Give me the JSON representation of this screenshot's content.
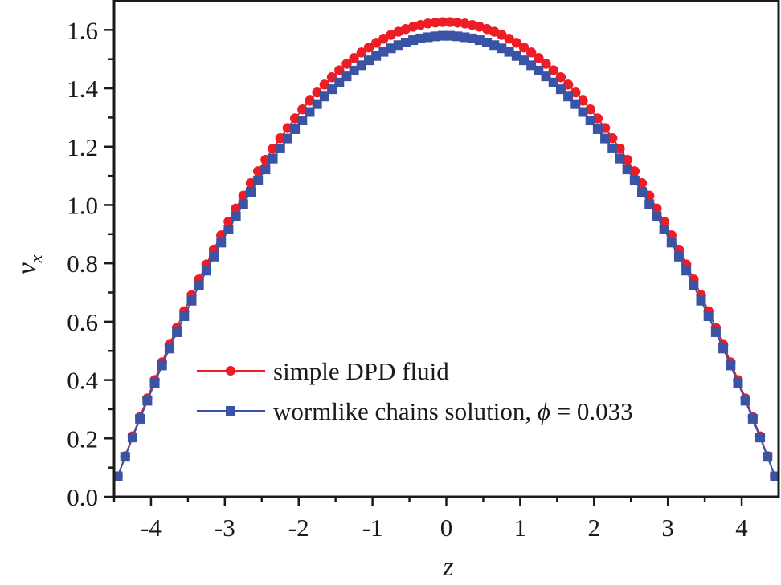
{
  "chart_data": {
    "type": "scatter",
    "title": "",
    "xlabel": "z",
    "ylabel": "v_x",
    "ylabel_main": "v",
    "ylabel_sub": "x",
    "xlim": [
      -4.5,
      4.5
    ],
    "ylim": [
      0.0,
      1.7
    ],
    "x_ticks": [
      -4,
      -3,
      -2,
      -1,
      0,
      1,
      2,
      3,
      4
    ],
    "x_tick_labels": [
      "-4",
      "-3",
      "-2",
      "-1",
      "0",
      "1",
      "2",
      "3",
      "4"
    ],
    "x_minor_ticks": [
      -3.5,
      -2.5,
      -1.5,
      -0.5,
      0.5,
      1.5,
      2.5,
      3.5
    ],
    "y_ticks": [
      0.0,
      0.2,
      0.4,
      0.6,
      0.8,
      1.0,
      1.2,
      1.4,
      1.6
    ],
    "y_tick_labels": [
      "0.0",
      "0.2",
      "0.4",
      "0.6",
      "0.8",
      "1.0",
      "1.2",
      "1.4",
      "1.6"
    ],
    "y_minor_ticks": [
      0.1,
      0.3,
      0.5,
      0.7,
      0.9,
      1.1,
      1.3,
      1.5
    ],
    "grid": false,
    "legend_position": "lower center (inside plot)",
    "x": [
      -4.45,
      -4.35,
      -4.25,
      -4.15,
      -4.05,
      -3.95,
      -3.85,
      -3.75,
      -3.65,
      -3.55,
      -3.45,
      -3.35,
      -3.25,
      -3.15,
      -3.05,
      -2.95,
      -2.85,
      -2.75,
      -2.65,
      -2.55,
      -2.45,
      -2.35,
      -2.25,
      -2.15,
      -2.05,
      -1.95,
      -1.85,
      -1.75,
      -1.65,
      -1.55,
      -1.45,
      -1.35,
      -1.25,
      -1.15,
      -1.05,
      -0.95,
      -0.85,
      -0.75,
      -0.65,
      -0.55,
      -0.45,
      -0.35,
      -0.25,
      -0.15,
      -0.05,
      0.05,
      0.15,
      0.25,
      0.35,
      0.45,
      0.55,
      0.65,
      0.75,
      0.85,
      0.95,
      1.05,
      1.15,
      1.25,
      1.35,
      1.45,
      1.55,
      1.65,
      1.75,
      1.85,
      1.95,
      2.05,
      2.15,
      2.25,
      2.35,
      2.45,
      2.55,
      2.65,
      2.75,
      2.85,
      2.95,
      3.05,
      3.15,
      3.25,
      3.35,
      3.45,
      3.55,
      3.65,
      3.75,
      3.85,
      3.95,
      4.05,
      4.15,
      4.25,
      4.35,
      4.45
    ],
    "series": [
      {
        "name": "simple DPD fluid",
        "color": "#ee1c25",
        "marker": "circle",
        "values": [
          0.07,
          0.139,
          0.207,
          0.273,
          0.337,
          0.4,
          0.461,
          0.521,
          0.579,
          0.636,
          0.691,
          0.745,
          0.796,
          0.847,
          0.896,
          0.943,
          0.988,
          1.032,
          1.075,
          1.116,
          1.155,
          1.193,
          1.229,
          1.264,
          1.297,
          1.328,
          1.358,
          1.386,
          1.413,
          1.438,
          1.462,
          1.484,
          1.504,
          1.523,
          1.54,
          1.556,
          1.57,
          1.583,
          1.594,
          1.603,
          1.611,
          1.617,
          1.622,
          1.625,
          1.627,
          1.627,
          1.625,
          1.622,
          1.617,
          1.611,
          1.603,
          1.594,
          1.583,
          1.57,
          1.556,
          1.54,
          1.523,
          1.504,
          1.484,
          1.462,
          1.438,
          1.413,
          1.386,
          1.358,
          1.328,
          1.297,
          1.264,
          1.229,
          1.193,
          1.155,
          1.116,
          1.075,
          1.032,
          0.988,
          0.943,
          0.896,
          0.847,
          0.796,
          0.745,
          0.691,
          0.636,
          0.579,
          0.521,
          0.461,
          0.4,
          0.337,
          0.273,
          0.207,
          0.139,
          0.07
        ]
      },
      {
        "name": "wormlike chains solution, ϕ = 0.033",
        "color": "#3a53a4",
        "marker": "square",
        "values": [
          0.07,
          0.137,
          0.203,
          0.267,
          0.329,
          0.39,
          0.45,
          0.508,
          0.564,
          0.619,
          0.672,
          0.724,
          0.775,
          0.823,
          0.871,
          0.916,
          0.961,
          1.003,
          1.045,
          1.084,
          1.122,
          1.159,
          1.194,
          1.228,
          1.26,
          1.29,
          1.319,
          1.346,
          1.372,
          1.397,
          1.42,
          1.441,
          1.461,
          1.479,
          1.496,
          1.511,
          1.525,
          1.537,
          1.548,
          1.557,
          1.565,
          1.571,
          1.575,
          1.578,
          1.58,
          1.58,
          1.578,
          1.575,
          1.571,
          1.565,
          1.557,
          1.548,
          1.537,
          1.525,
          1.511,
          1.496,
          1.479,
          1.461,
          1.441,
          1.42,
          1.397,
          1.372,
          1.346,
          1.319,
          1.29,
          1.26,
          1.228,
          1.194,
          1.159,
          1.122,
          1.084,
          1.045,
          1.003,
          0.961,
          0.916,
          0.871,
          0.823,
          0.775,
          0.724,
          0.672,
          0.619,
          0.564,
          0.508,
          0.45,
          0.39,
          0.329,
          0.267,
          0.203,
          0.137,
          0.07
        ]
      }
    ]
  },
  "legend": {
    "items": [
      {
        "label": "simple DPD fluid",
        "color": "#ee1c25",
        "marker": "circle"
      },
      {
        "label_prefix": "wormlike chains solution, ",
        "symbol": "ϕ",
        "label_suffix": " = 0.033",
        "color": "#3a53a4",
        "marker": "square"
      }
    ]
  },
  "colors": {
    "axis": "#1a1a1a",
    "background": "#ffffff"
  }
}
